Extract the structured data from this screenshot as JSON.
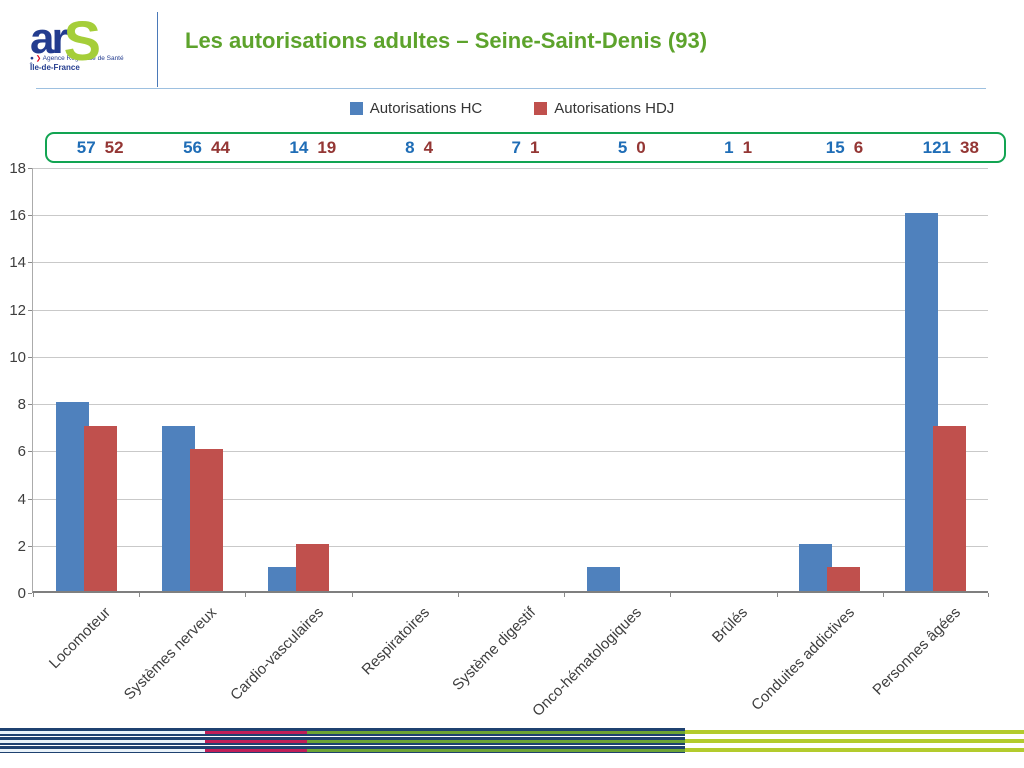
{
  "header": {
    "logo": {
      "ar": "ar",
      "s": "S",
      "tagline_bullet": "●",
      "tagline_arrow": "❯",
      "tagline": "Agence Régionale de Santé",
      "region": "Île-de-France"
    },
    "title": "Les autorisations adultes – Seine-Saint-Denis (93)",
    "title_color": "#5DA32C"
  },
  "legend": {
    "items": [
      {
        "label": "Autorisations HC",
        "color": "#4F81BD"
      },
      {
        "label": "Autorisations HDJ",
        "color": "#C0504D"
      }
    ]
  },
  "totals_box": {
    "border_color": "#12A452",
    "hc_color": "#1F6DB6",
    "hdj_color": "#943634"
  },
  "chart_data": {
    "type": "bar",
    "title": "",
    "categories": [
      "Locomoteur",
      "Systèmes nerveux",
      "Cardio-vasculaires",
      "Respiratoires",
      "Système digestif",
      "Onco-hématologiques",
      "Brûlés",
      "Conduites addictives",
      "Personnes âgées"
    ],
    "series": [
      {
        "name": "Autorisations HC",
        "color": "#4F81BD",
        "values": [
          8,
          7,
          1,
          0,
          0,
          1,
          0,
          2,
          16
        ]
      },
      {
        "name": "Autorisations HDJ",
        "color": "#C0504D",
        "values": [
          7,
          6,
          2,
          0,
          0,
          0,
          0,
          1,
          7
        ]
      }
    ],
    "ylim": [
      0,
      18
    ],
    "ytick_step": 2,
    "grid": true,
    "legend_position": "top",
    "xlabel": "",
    "ylabel": "",
    "annotations": {
      "totals_pairs": [
        [
          57,
          52
        ],
        [
          56,
          44
        ],
        [
          14,
          19
        ],
        [
          8,
          4
        ],
        [
          7,
          1
        ],
        [
          5,
          0
        ],
        [
          1,
          1
        ],
        [
          15,
          6
        ],
        [
          121,
          38
        ]
      ]
    }
  },
  "footer": {
    "navy": "#1F4170",
    "crimson": "#C11E58",
    "green": "#6CA434",
    "lime": "#B3CB2D",
    "pale": "#E9F2F9"
  }
}
